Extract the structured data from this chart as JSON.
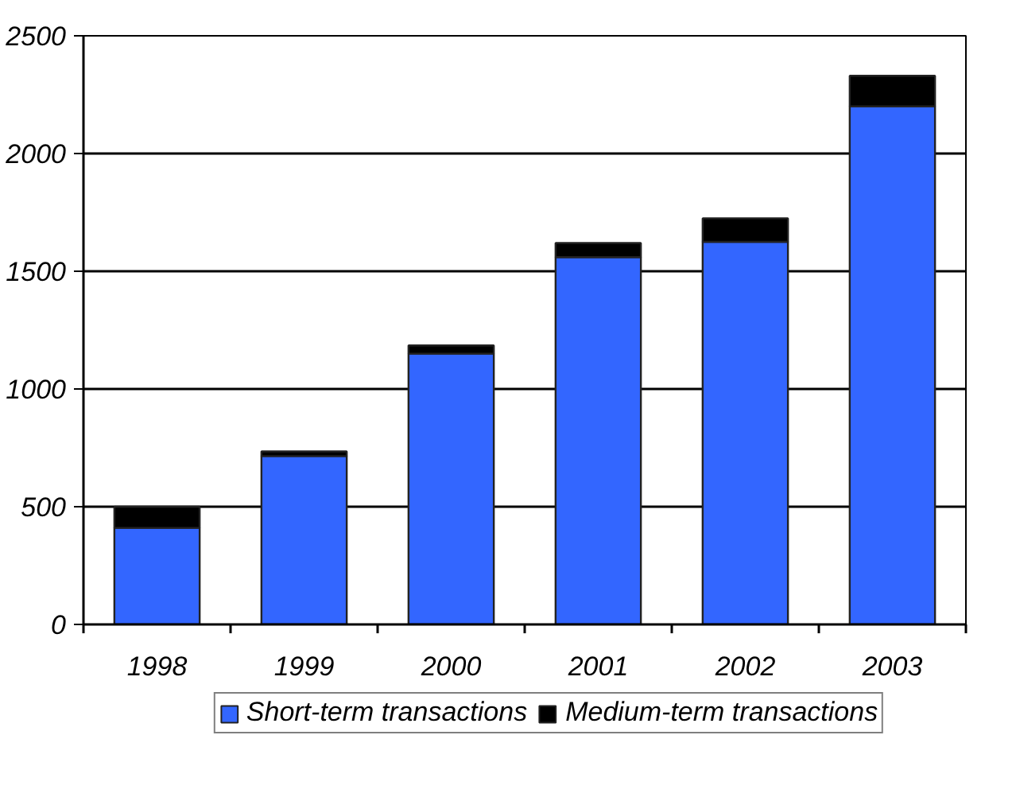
{
  "chart_data": {
    "type": "bar",
    "stacked": true,
    "categories": [
      "1998",
      "1999",
      "2000",
      "2001",
      "2002",
      "2003"
    ],
    "series": [
      {
        "name": "Short-term transactions",
        "color": "#3366ff",
        "values": [
          410,
          715,
          1150,
          1560,
          1625,
          2200
        ]
      },
      {
        "name": "Medium-term transactions",
        "color": "#000000",
        "values": [
          90,
          20,
          35,
          60,
          100,
          130
        ]
      }
    ],
    "ylim": [
      0,
      2500
    ],
    "yticks": [
      0,
      500,
      1000,
      1500,
      2000,
      2500
    ],
    "grid": "y",
    "legend": "bottom"
  }
}
